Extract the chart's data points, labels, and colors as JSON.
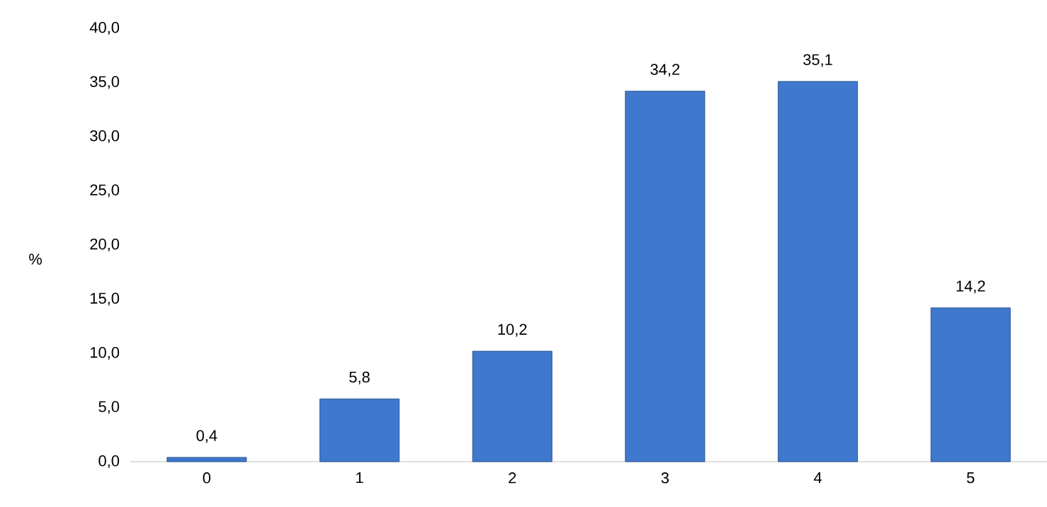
{
  "chart_data": {
    "type": "bar",
    "ylabel": "%",
    "categories": [
      "0",
      "1",
      "2",
      "3",
      "4",
      "5"
    ],
    "values": [
      0.4,
      5.8,
      10.2,
      34.2,
      35.1,
      14.2
    ],
    "value_labels": [
      "0,4",
      "5,8",
      "10,2",
      "34,2",
      "35,1",
      "14,2"
    ],
    "color": "#3f78cc",
    "ylim": [
      0,
      40
    ],
    "yticks": [
      {
        "value": 0,
        "label": "0,0"
      },
      {
        "value": 5,
        "label": "5,0"
      },
      {
        "value": 10,
        "label": "10,0"
      },
      {
        "value": 15,
        "label": "15,0"
      },
      {
        "value": 20,
        "label": "20,0"
      },
      {
        "value": 25,
        "label": "25,0"
      },
      {
        "value": 30,
        "label": "30,0"
      },
      {
        "value": 35,
        "label": "35,0"
      },
      {
        "value": 40,
        "label": "40,0"
      }
    ]
  }
}
